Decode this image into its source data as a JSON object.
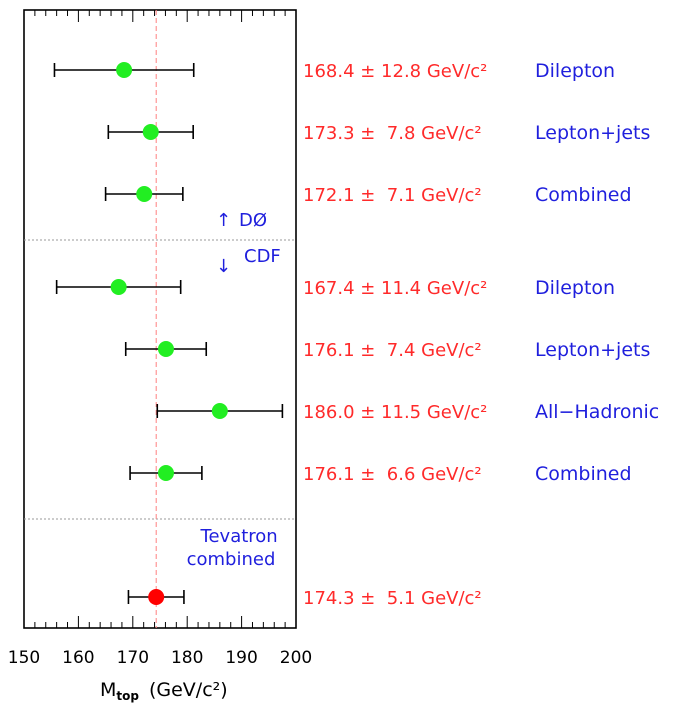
{
  "chart_data": {
    "type": "scatter",
    "xlabel": "M",
    "xlabel_subscript": "top",
    "xlabel_unit": "(GeV/c²)",
    "xlim": [
      150,
      200
    ],
    "x_ticks": [
      "150",
      "160",
      "170",
      "180",
      "190",
      "200"
    ],
    "reference_value": 174.3,
    "groups": [
      {
        "label": "DØ",
        "marker": "↑"
      },
      {
        "label": "CDF",
        "marker": "↓"
      },
      {
        "label": "Tevatron combined"
      }
    ],
    "measurements": [
      {
        "experiment": "DØ",
        "name": "Dilepton",
        "value": 168.4,
        "error": 12.8,
        "value_text": "168.4 ± 12.8 GeV/c²",
        "marker_color": "#22ee22"
      },
      {
        "experiment": "DØ",
        "name": "Lepton+jets",
        "value": 173.3,
        "error": 7.8,
        "value_text": "173.3 ±  7.8 GeV/c²",
        "marker_color": "#22ee22"
      },
      {
        "experiment": "DØ",
        "name": "Combined",
        "value": 172.1,
        "error": 7.1,
        "value_text": "172.1 ±  7.1 GeV/c²",
        "marker_color": "#22ee22"
      },
      {
        "experiment": "CDF",
        "name": "Dilepton",
        "value": 167.4,
        "error": 11.4,
        "value_text": "167.4 ± 11.4 GeV/c²",
        "marker_color": "#22ee22"
      },
      {
        "experiment": "CDF",
        "name": "Lepton+jets",
        "value": 176.1,
        "error": 7.4,
        "value_text": "176.1 ±  7.4 GeV/c²",
        "marker_color": "#22ee22"
      },
      {
        "experiment": "CDF",
        "name": "All−Hadronic",
        "value": 186.0,
        "error": 11.5,
        "value_text": "186.0 ± 11.5 GeV/c²",
        "marker_color": "#22ee22"
      },
      {
        "experiment": "CDF",
        "name": "Combined",
        "value": 176.1,
        "error": 6.6,
        "value_text": "176.1 ±  6.6 GeV/c²",
        "marker_color": "#22ee22"
      },
      {
        "experiment": "Tevatron",
        "name": "",
        "value": 174.3,
        "error": 5.1,
        "value_text": "174.3 ±  5.1 GeV/c²",
        "marker_color": "#ff0000"
      }
    ],
    "colors": {
      "value_text": "#ff2a2a",
      "name_text": "#1f1fdd",
      "group_text": "#1f1fdd",
      "reference_line": "#ff8080",
      "separator": "#999999"
    }
  }
}
